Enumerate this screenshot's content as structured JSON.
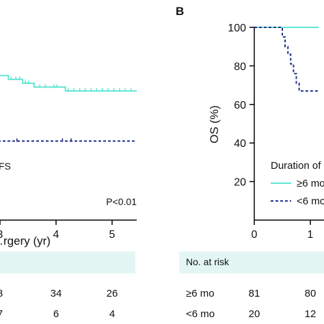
{
  "chart_data": [
    {
      "type": "line",
      "panel": "A",
      "xlabel": "…rgery (yr)",
      "x_ticks": [
        "3",
        "4",
        "5"
      ],
      "xlim": [
        2.9,
        5.5
      ],
      "ylim": [
        0,
        100
      ],
      "series": [
        {
          "style": "solid",
          "color": "#5ee6d2",
          "steps": [
            [
              2.9,
              75
            ],
            [
              3.25,
              75
            ],
            [
              3.25,
              73
            ],
            [
              3.5,
              73
            ],
            [
              3.5,
              71
            ],
            [
              3.7,
              71
            ],
            [
              3.7,
              69
            ],
            [
              4.25,
              69
            ],
            [
              4.25,
              67
            ],
            [
              5.5,
              67
            ]
          ],
          "censor_x": [
            3.05,
            3.3,
            3.38,
            3.45,
            3.55,
            3.6,
            3.8,
            3.9,
            4.05,
            4.1,
            4.3,
            4.4,
            4.5,
            4.6,
            4.7,
            4.8,
            4.9,
            5.0,
            5.1,
            5.2,
            5.3,
            5.4
          ]
        },
        {
          "style": "dashed",
          "color": "#1f2f8a",
          "steps": [
            [
              2.9,
              41
            ],
            [
              5.5,
              41
            ]
          ],
          "censor_x": [
            3.4,
            4.2,
            4.35
          ]
        }
      ],
      "legend_fragment": "FS",
      "p_value": "P<0.01",
      "risk_table": {
        "rows": [
          {
            "values": [
              "8",
              "34",
              "26"
            ]
          },
          {
            "values": [
              "7",
              "6",
              "4"
            ]
          }
        ]
      }
    },
    {
      "type": "line",
      "panel": "B",
      "ylabel": "OS (%)",
      "y_ticks": [
        "20",
        "40",
        "60",
        "80",
        "100"
      ],
      "x_ticks": [
        "0",
        "1"
      ],
      "xlim": [
        0,
        1.15
      ],
      "ylim": [
        0,
        100
      ],
      "legend_title": "Duration of",
      "series": [
        {
          "name": "≥6 mo",
          "style": "solid",
          "color": "#5ee6d2",
          "steps": [
            [
              0,
              100
            ],
            [
              1.15,
              100
            ]
          ],
          "censor_x": []
        },
        {
          "name": "<6 mo",
          "style": "dashed",
          "color": "#1f2f8a",
          "steps": [
            [
              0,
              100
            ],
            [
              0.5,
              100
            ],
            [
              0.5,
              95
            ],
            [
              0.55,
              95
            ],
            [
              0.55,
              90
            ],
            [
              0.6,
              90
            ],
            [
              0.6,
              86
            ],
            [
              0.65,
              86
            ],
            [
              0.65,
              81
            ],
            [
              0.7,
              81
            ],
            [
              0.7,
              76
            ],
            [
              0.75,
              76
            ],
            [
              0.75,
              71
            ],
            [
              0.8,
              71
            ],
            [
              0.8,
              67
            ],
            [
              1.15,
              67
            ]
          ],
          "censor_x": []
        }
      ],
      "risk_table": {
        "header": "No. at risk",
        "rows": [
          {
            "label": "≥6 mo",
            "values": [
              "81",
              "80"
            ]
          },
          {
            "label": "<6 mo",
            "values": [
              "20",
              "12"
            ]
          }
        ]
      }
    }
  ],
  "labels": {
    "panel_b": "B"
  }
}
